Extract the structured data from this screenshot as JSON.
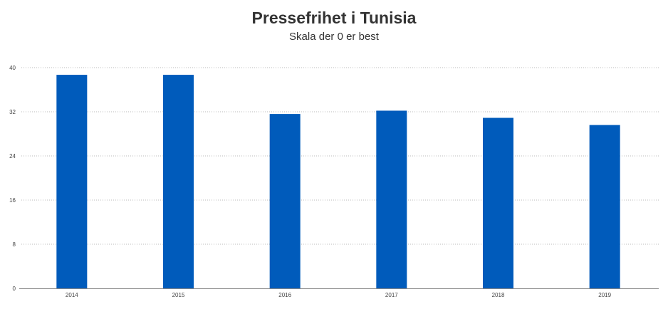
{
  "chart_data": {
    "type": "bar",
    "title": "Pressefrihet i Tunisia",
    "subtitle": "Skala der 0 er best",
    "categories": [
      "2014",
      "2015",
      "2016",
      "2017",
      "2018",
      "2019"
    ],
    "values": [
      38.7,
      38.7,
      31.6,
      32.2,
      30.9,
      29.6
    ],
    "xlabel": "",
    "ylabel": "",
    "ylim": [
      0,
      40
    ],
    "yticks": [
      0,
      8,
      16,
      24,
      32,
      40
    ],
    "grid": true,
    "legend": "none",
    "bar_color": "#005bbb"
  }
}
